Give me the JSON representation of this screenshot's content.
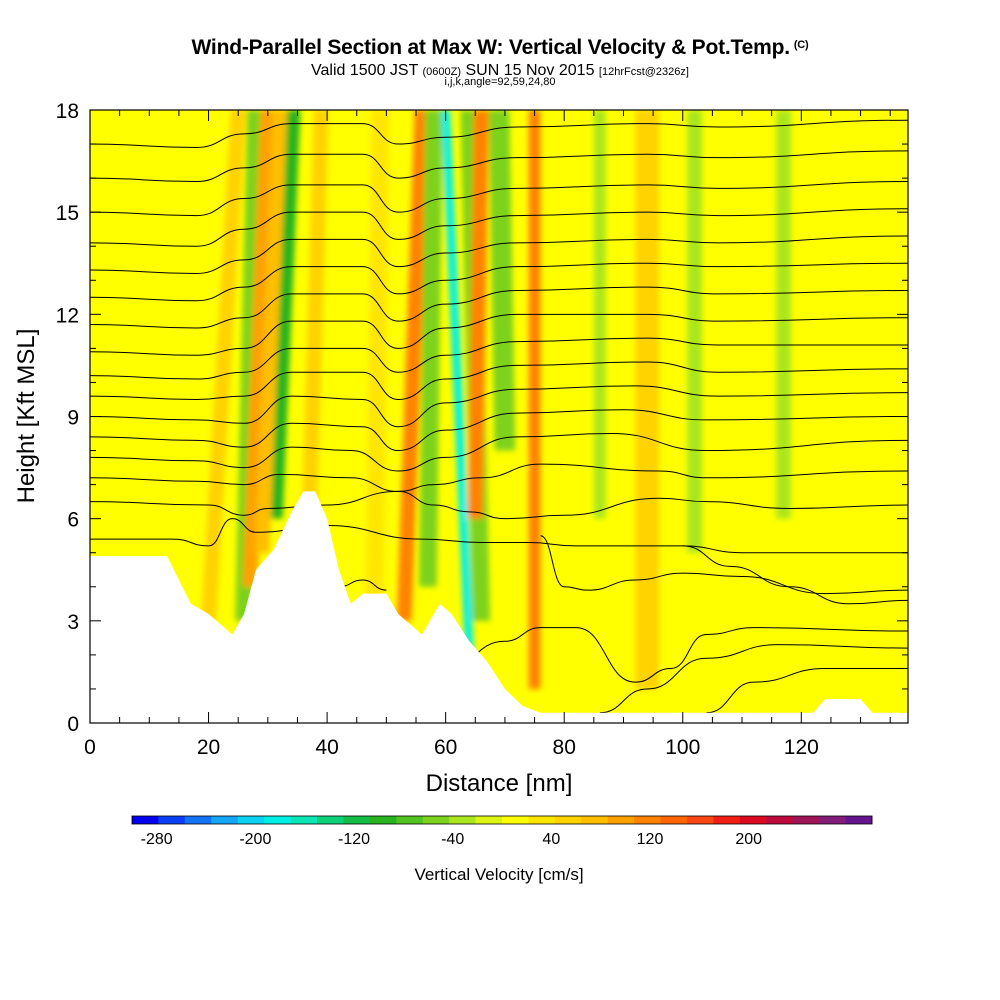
{
  "header": {
    "title": "Wind-Parallel Section at Max W: Vertical Velocity & Pot.Temp.",
    "copyright": "(C)",
    "valid_a": "Valid 1500 JST",
    "valid_b": "(0600Z)",
    "valid_c": "SUN 15 Nov 2015",
    "valid_d": "[12hrFcst@2326z]",
    "params": "i,j,k,angle=92,59,24,80"
  },
  "chart_data": {
    "type": "heatmap",
    "xlabel": "Distance [nm]",
    "ylabel": "Height [Kft MSL]",
    "xlim": [
      0,
      138
    ],
    "ylim": [
      0,
      18
    ],
    "x_ticks": [
      0,
      20,
      40,
      60,
      80,
      100,
      120
    ],
    "y_ticks": [
      0,
      3,
      6,
      9,
      12,
      15,
      18
    ],
    "background_value": 15,
    "bands": [
      {
        "x_bottom": 20,
        "x_top": 25,
        "width": 2.5,
        "y_from": 3,
        "value": 45
      },
      {
        "x_bottom": 26,
        "x_top": 28,
        "width": 3.0,
        "y_from": 3,
        "value": -60
      },
      {
        "x_bottom": 27,
        "x_top": 30,
        "width": 2.5,
        "y_from": 4,
        "value": 100
      },
      {
        "x_bottom": 31,
        "x_top": 34,
        "width": 3.0,
        "y_from": 6,
        "value": -90
      },
      {
        "x_bottom": 29,
        "x_top": 32,
        "width": 2.5,
        "y_from": 5,
        "value": 70
      },
      {
        "x_bottom": 37,
        "x_top": 39,
        "width": 2.5,
        "y_from": 6,
        "value": 50
      },
      {
        "x_bottom": 53,
        "x_top": 56,
        "width": 2.5,
        "y_from": 3,
        "value": 110
      },
      {
        "x_bottom": 57,
        "x_top": 58,
        "width": 3.0,
        "y_from": 4,
        "value": -60
      },
      {
        "x_bottom": 64,
        "x_top": 60,
        "width": 1.5,
        "y_from": 2,
        "value": -180
      },
      {
        "x_bottom": 66,
        "x_top": 64,
        "width": 3.0,
        "y_from": 3,
        "value": -50
      },
      {
        "x_bottom": 65,
        "x_top": 66,
        "width": 2.5,
        "y_from": 6,
        "value": 110
      },
      {
        "x_bottom": 70,
        "x_top": 69,
        "width": 3.5,
        "y_from": 8,
        "value": -60
      },
      {
        "x_bottom": 75,
        "x_top": 75,
        "width": 2.0,
        "y_from": 1,
        "value": 110
      },
      {
        "x_bottom": 94,
        "x_top": 94,
        "width": 4.0,
        "y_from": 1,
        "value": 55
      },
      {
        "x_bottom": 102,
        "x_top": 102,
        "width": 2.5,
        "y_from": 5,
        "value": -40
      },
      {
        "x_bottom": 48,
        "x_top": 49,
        "width": 3.0,
        "y_from": 3,
        "value": 40
      },
      {
        "x_bottom": 117,
        "x_top": 117,
        "width": 2.5,
        "y_from": 6,
        "value": -35
      },
      {
        "x_bottom": 86,
        "x_top": 86,
        "width": 2.0,
        "y_from": 6,
        "value": -30
      }
    ],
    "terrain": [
      [
        0,
        4.9
      ],
      [
        13,
        4.9
      ],
      [
        17,
        3.5
      ],
      [
        20,
        3.2
      ],
      [
        24,
        2.6
      ],
      [
        26,
        3.2
      ],
      [
        28,
        4.5
      ],
      [
        31,
        5.1
      ],
      [
        34,
        6.2
      ],
      [
        36,
        6.8
      ],
      [
        38,
        6.8
      ],
      [
        40,
        6.0
      ],
      [
        42,
        4.5
      ],
      [
        44,
        3.5
      ],
      [
        46,
        3.8
      ],
      [
        50,
        3.8
      ],
      [
        52,
        3.2
      ],
      [
        56,
        2.6
      ],
      [
        59,
        3.5
      ],
      [
        61,
        3.2
      ],
      [
        64,
        2.4
      ],
      [
        67,
        1.8
      ],
      [
        70,
        1.0
      ],
      [
        73,
        0.5
      ],
      [
        76,
        0.3
      ],
      [
        122,
        0.3
      ],
      [
        124,
        0.7
      ],
      [
        130,
        0.7
      ],
      [
        132,
        0.3
      ],
      [
        138,
        0.3
      ]
    ],
    "contours": [
      {
        "label": "",
        "label_at": null,
        "pts": [
          [
            0,
            5.4
          ],
          [
            14,
            5.4
          ],
          [
            20,
            5.2
          ],
          [
            24,
            6.0
          ],
          [
            28,
            5.6
          ],
          [
            40,
            5.8
          ],
          [
            56,
            5.4
          ],
          [
            66,
            5.3
          ],
          [
            74,
            5.3
          ],
          [
            82,
            5.2
          ],
          [
            100,
            5.2
          ],
          [
            110,
            5.0
          ],
          [
            138,
            5.0
          ]
        ]
      },
      {
        "label": "",
        "label_at": null,
        "pts": [
          [
            0,
            6.5
          ],
          [
            20,
            6.4
          ],
          [
            26,
            6.1
          ],
          [
            30,
            6.3
          ],
          [
            40,
            6.4
          ],
          [
            52,
            6.8
          ],
          [
            58,
            6.4
          ],
          [
            64,
            6.2
          ],
          [
            70,
            6.0
          ],
          [
            80,
            6.1
          ],
          [
            96,
            6.6
          ],
          [
            104,
            6.5
          ],
          [
            118,
            6.3
          ],
          [
            138,
            6.4
          ]
        ]
      },
      {
        "label": "",
        "label_at": null,
        "pts": [
          [
            0,
            7.2
          ],
          [
            18,
            7.1
          ],
          [
            26,
            7.0
          ],
          [
            32,
            7.3
          ],
          [
            44,
            7.2
          ],
          [
            52,
            6.8
          ],
          [
            58,
            7.0
          ],
          [
            66,
            7.2
          ],
          [
            76,
            7.6
          ],
          [
            96,
            7.4
          ],
          [
            104,
            7.2
          ],
          [
            138,
            7.4
          ]
        ]
      },
      {
        "label": "",
        "label_at": null,
        "pts": [
          [
            0,
            7.8
          ],
          [
            18,
            7.7
          ],
          [
            26,
            7.5
          ],
          [
            34,
            8.1
          ],
          [
            44,
            8.0
          ],
          [
            52,
            7.4
          ],
          [
            60,
            7.8
          ],
          [
            72,
            8.4
          ],
          [
            88,
            8.5
          ],
          [
            104,
            8.0
          ],
          [
            138,
            8.3
          ]
        ]
      },
      {
        "label": "",
        "label_at": null,
        "pts": [
          [
            0,
            8.4
          ],
          [
            18,
            8.3
          ],
          [
            26,
            8.1
          ],
          [
            34,
            8.8
          ],
          [
            46,
            8.7
          ],
          [
            52,
            8.0
          ],
          [
            60,
            8.6
          ],
          [
            72,
            9.1
          ],
          [
            90,
            9.2
          ],
          [
            104,
            8.9
          ],
          [
            138,
            9.0
          ]
        ]
      },
      {
        "label": "",
        "label_at": null,
        "pts": [
          [
            0,
            9.0
          ],
          [
            18,
            8.9
          ],
          [
            26,
            8.8
          ],
          [
            34,
            9.6
          ],
          [
            46,
            9.5
          ],
          [
            52,
            8.7
          ],
          [
            60,
            9.4
          ],
          [
            72,
            9.8
          ],
          [
            92,
            9.9
          ],
          [
            106,
            9.6
          ],
          [
            138,
            9.7
          ]
        ]
      },
      {
        "label": "",
        "label_at": null,
        "pts": [
          [
            0,
            9.6
          ],
          [
            18,
            9.5
          ],
          [
            26,
            9.6
          ],
          [
            34,
            10.3
          ],
          [
            46,
            10.3
          ],
          [
            52,
            9.5
          ],
          [
            60,
            10.1
          ],
          [
            72,
            10.5
          ],
          [
            94,
            10.6
          ],
          [
            106,
            10.3
          ],
          [
            138,
            10.4
          ]
        ]
      },
      {
        "label": "",
        "label_at": null,
        "pts": [
          [
            0,
            10.2
          ],
          [
            18,
            10.1
          ],
          [
            26,
            10.3
          ],
          [
            34,
            11.0
          ],
          [
            46,
            11.0
          ],
          [
            52,
            10.3
          ],
          [
            60,
            10.8
          ],
          [
            72,
            11.2
          ],
          [
            94,
            11.3
          ],
          [
            106,
            11.1
          ],
          [
            138,
            11.1
          ]
        ]
      },
      {
        "label": "",
        "label_at": null,
        "pts": [
          [
            0,
            10.9
          ],
          [
            18,
            10.8
          ],
          [
            26,
            11.0
          ],
          [
            34,
            11.8
          ],
          [
            46,
            11.8
          ],
          [
            52,
            11.0
          ],
          [
            60,
            11.6
          ],
          [
            72,
            12.0
          ],
          [
            94,
            12.0
          ],
          [
            106,
            11.8
          ],
          [
            138,
            11.9
          ]
        ]
      },
      {
        "label": "",
        "label_at": null,
        "pts": [
          [
            0,
            11.7
          ],
          [
            18,
            11.6
          ],
          [
            26,
            11.9
          ],
          [
            34,
            12.6
          ],
          [
            46,
            12.6
          ],
          [
            52,
            11.8
          ],
          [
            60,
            12.3
          ],
          [
            72,
            12.7
          ],
          [
            94,
            12.8
          ],
          [
            106,
            12.6
          ],
          [
            138,
            12.7
          ]
        ]
      },
      {
        "label": "",
        "label_at": null,
        "pts": [
          [
            0,
            12.5
          ],
          [
            18,
            12.4
          ],
          [
            26,
            12.8
          ],
          [
            34,
            13.4
          ],
          [
            46,
            13.4
          ],
          [
            52,
            12.6
          ],
          [
            60,
            13.0
          ],
          [
            72,
            13.4
          ],
          [
            94,
            13.5
          ],
          [
            106,
            13.4
          ],
          [
            138,
            13.5
          ]
        ]
      },
      {
        "label": "",
        "label_at": null,
        "pts": [
          [
            0,
            13.3
          ],
          [
            18,
            13.2
          ],
          [
            26,
            13.6
          ],
          [
            34,
            14.2
          ],
          [
            46,
            14.2
          ],
          [
            52,
            13.4
          ],
          [
            60,
            13.8
          ],
          [
            72,
            14.1
          ],
          [
            94,
            14.2
          ],
          [
            106,
            14.1
          ],
          [
            138,
            14.3
          ]
        ]
      },
      {
        "label": "",
        "label_at": null,
        "pts": [
          [
            0,
            14.1
          ],
          [
            18,
            14.0
          ],
          [
            26,
            14.5
          ],
          [
            34,
            15.0
          ],
          [
            46,
            15.0
          ],
          [
            52,
            14.2
          ],
          [
            60,
            14.6
          ],
          [
            72,
            14.9
          ],
          [
            94,
            15.0
          ],
          [
            106,
            14.9
          ],
          [
            138,
            15.1
          ]
        ]
      },
      {
        "label": "",
        "label_at": null,
        "pts": [
          [
            0,
            15.0
          ],
          [
            18,
            14.9
          ],
          [
            26,
            15.4
          ],
          [
            34,
            15.8
          ],
          [
            46,
            15.8
          ],
          [
            52,
            15.0
          ],
          [
            60,
            15.4
          ],
          [
            72,
            15.7
          ],
          [
            94,
            15.8
          ],
          [
            106,
            15.7
          ],
          [
            138,
            15.9
          ]
        ]
      },
      {
        "label": "",
        "label_at": null,
        "pts": [
          [
            0,
            16.0
          ],
          [
            18,
            15.9
          ],
          [
            26,
            16.3
          ],
          [
            34,
            16.7
          ],
          [
            46,
            16.7
          ],
          [
            52,
            16.0
          ],
          [
            60,
            16.3
          ],
          [
            72,
            16.6
          ],
          [
            94,
            16.7
          ],
          [
            106,
            16.6
          ],
          [
            138,
            16.8
          ]
        ]
      },
      {
        "label": "",
        "label_at": null,
        "pts": [
          [
            0,
            17.0
          ],
          [
            18,
            16.9
          ],
          [
            26,
            17.3
          ],
          [
            34,
            17.6
          ],
          [
            46,
            17.6
          ],
          [
            52,
            17.0
          ],
          [
            60,
            17.2
          ],
          [
            72,
            17.5
          ],
          [
            94,
            17.6
          ],
          [
            106,
            17.5
          ],
          [
            138,
            17.7
          ]
        ]
      },
      {
        "label": "",
        "label_at": null,
        "pts": [
          [
            56,
            0.3
          ],
          [
            60,
            1.6
          ],
          [
            70,
            2.4
          ],
          [
            76,
            2.8
          ],
          [
            82,
            2.8
          ],
          [
            92,
            1.2
          ],
          [
            98,
            1.6
          ],
          [
            104,
            2.6
          ],
          [
            112,
            2.8
          ],
          [
            138,
            2.7
          ]
        ]
      },
      {
        "label": "",
        "label_at": null,
        "pts": [
          [
            86,
            0.3
          ],
          [
            94,
            1.0
          ],
          [
            104,
            1.9
          ],
          [
            116,
            2.3
          ],
          [
            138,
            2.2
          ]
        ]
      },
      {
        "label": "",
        "label_at": null,
        "pts": [
          [
            104,
            0.3
          ],
          [
            112,
            1.2
          ],
          [
            124,
            1.6
          ],
          [
            138,
            1.6
          ]
        ]
      },
      {
        "label": "",
        "label_at": null,
        "pts": [
          [
            42,
            4.0
          ],
          [
            46,
            4.2
          ],
          [
            50,
            3.9
          ]
        ]
      },
      {
        "label": "",
        "label_at": null,
        "pts": [
          [
            76,
            5.5
          ],
          [
            80,
            4.0
          ],
          [
            84,
            3.9
          ],
          [
            92,
            4.2
          ],
          [
            100,
            4.4
          ],
          [
            110,
            4.3
          ],
          [
            124,
            3.8
          ],
          [
            138,
            3.9
          ]
        ]
      },
      {
        "label": "",
        "label_at": null,
        "pts": [
          [
            100,
            5.2
          ],
          [
            108,
            4.6
          ],
          [
            118,
            4.0
          ],
          [
            128,
            3.5
          ],
          [
            138,
            3.6
          ]
        ]
      }
    ]
  },
  "colorbar": {
    "label": "Vertical Velocity [cm/s]",
    "tick_labels": [
      "-280",
      "-200",
      "-120",
      "-40",
      "40",
      "120",
      "200"
    ],
    "tick_values": [
      -280,
      -200,
      -120,
      -40,
      40,
      120,
      200
    ],
    "range": [
      -300,
      300
    ],
    "colors": [
      "#0000f0",
      "#0a3ef5",
      "#1473f5",
      "#14a5f5",
      "#0ad2f0",
      "#00f0e6",
      "#0ae6b4",
      "#0fd278",
      "#14be46",
      "#28b41e",
      "#50c31e",
      "#7dd21e",
      "#aae61e",
      "#dcf514",
      "#ffff00",
      "#ffe600",
      "#ffd200",
      "#ffbe00",
      "#ffa000",
      "#ff8200",
      "#ff6400",
      "#fa4614",
      "#f01e14",
      "#dc0a1e",
      "#be0a3c",
      "#a0145a",
      "#821e78",
      "#64148c"
    ]
  }
}
